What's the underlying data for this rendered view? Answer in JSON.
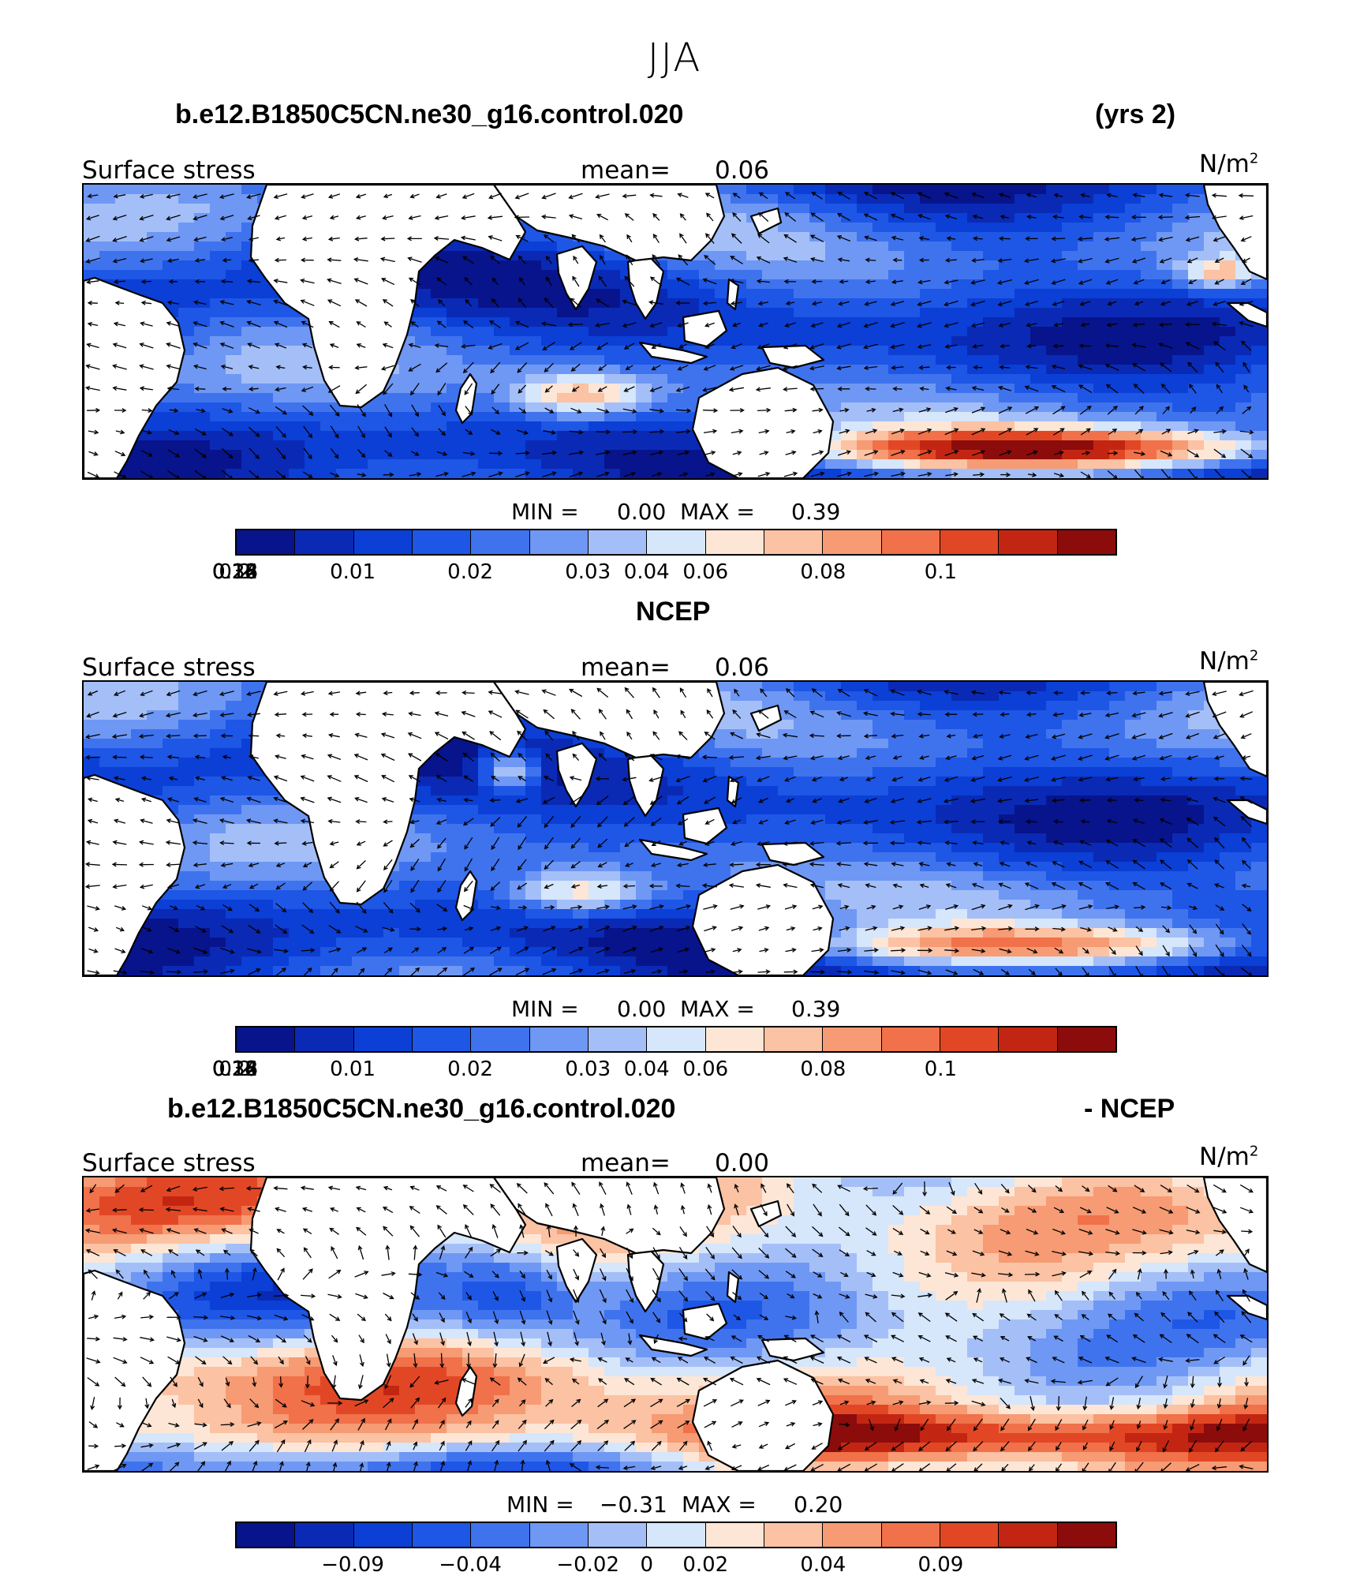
{
  "figure": {
    "title": "JJA"
  },
  "panels": [
    {
      "id": "model",
      "case_title": "b.e12.B1850C5CN.ne30_g16.control.020",
      "right_title": "(yrs 2)",
      "variable": "Surface stress",
      "mean_label": "mean=",
      "mean_value": "0.06",
      "units": "N/m",
      "units_exp": "2",
      "min_label": "MIN =",
      "min_value": "0.00",
      "max_label": "MAX =",
      "max_value": "0.39",
      "colorbar_labels": [
        "0.01",
        "0.02",
        "0.03",
        "0.04",
        "0.06",
        "0.08",
        "0.1",
        "0.12",
        "0.14",
        "0.16",
        "0.18",
        "0.2",
        "0.24",
        "0.28",
        "0.32"
      ],
      "field_pattern": "model"
    },
    {
      "id": "obs",
      "case_title": "NCEP",
      "right_title": "",
      "variable": "Surface stress",
      "mean_label": "mean=",
      "mean_value": "0.06",
      "units": "N/m",
      "units_exp": "2",
      "min_label": "MIN =",
      "min_value": "0.00",
      "max_label": "MAX =",
      "max_value": "0.39",
      "colorbar_labels": [
        "0.01",
        "0.02",
        "0.03",
        "0.04",
        "0.06",
        "0.08",
        "0.1",
        "0.12",
        "0.14",
        "0.16",
        "0.18",
        "0.2",
        "0.24",
        "0.28",
        "0.32"
      ],
      "field_pattern": "obs"
    },
    {
      "id": "diff",
      "case_title": "b.e12.B1850C5CN.ne30_g16.control.020",
      "right_title": "- NCEP",
      "variable": "Surface stress",
      "mean_label": "mean=",
      "mean_value": "0.00",
      "units": "N/m",
      "units_exp": "2",
      "min_label": "MIN =",
      "min_value": "−0.31",
      "max_label": "MAX =",
      "max_value": "0.20",
      "colorbar_labels": [
        "−0.09",
        "−0.04",
        "−0.02",
        "0",
        "0.02",
        "0.04",
        "0.09"
      ],
      "field_pattern": "diff"
    }
  ],
  "colormap": [
    "#08148c",
    "#0a2ab5",
    "#0b3fd6",
    "#1e56e6",
    "#3f73ee",
    "#6f98f4",
    "#a4bff8",
    "#d6e6fb",
    "#fde6d6",
    "#fbc2a3",
    "#f69b73",
    "#f0714a",
    "#e24725",
    "#c22613",
    "#8c0c0c"
  ]
}
